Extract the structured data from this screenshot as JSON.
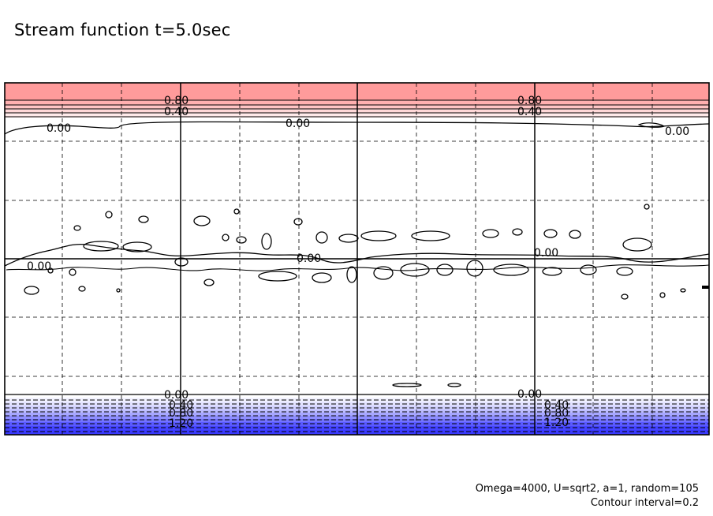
{
  "title": "Stream function t=5.0sec",
  "footer": {
    "params": "Omega=4000, U=sqrt2, a=1, random=105",
    "contour_interval": "Contour interval=0.2"
  },
  "colors": {
    "positive_fill": "#ff9999",
    "negative_fill": "#3333ff",
    "contour": "#000000",
    "grid_dashed": "#000000"
  },
  "chart_data": {
    "type": "contour",
    "title": "Stream function t=5.0sec",
    "field": "stream function",
    "contour_interval": 0.2,
    "positive_levels_top_band": [
      0.0,
      0.2,
      0.4,
      0.6,
      0.8
    ],
    "negative_levels_bottom_band": [
      0.0,
      -0.2,
      -0.4,
      -0.6,
      -0.8,
      -1.0,
      -1.2
    ],
    "labeled_contours": [
      {
        "label": "0.80",
        "band": "top"
      },
      {
        "label": "0.40",
        "band": "top"
      },
      {
        "label": "0.00",
        "band": "top"
      },
      {
        "label": "0.00",
        "band": "middle"
      },
      {
        "label": "0.00",
        "band": "bottom"
      },
      {
        "label": "0.40",
        "band": "bottom"
      },
      {
        "label": "0.80",
        "band": "bottom"
      },
      {
        "label": "1.20",
        "band": "bottom"
      }
    ],
    "grid": "dashed",
    "solid_gridlines": "every other column, center row"
  }
}
